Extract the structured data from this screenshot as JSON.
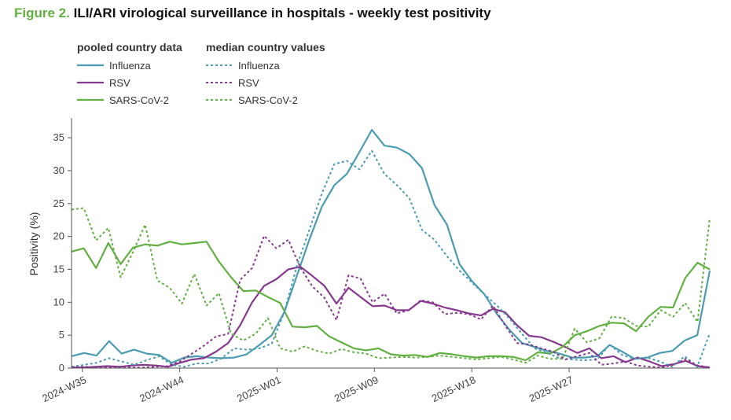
{
  "figure": {
    "label": "Figure 2.",
    "title": "ILI/ARI virological surveillance in hospitals - weekly test positivity"
  },
  "chart_data": {
    "type": "line",
    "title": "ILI/ARI virological surveillance in hospitals - weekly test positivity",
    "xlabel": "",
    "ylabel": "Positivity (%)",
    "ylim": [
      0,
      38
    ],
    "yticks": [
      0,
      5,
      10,
      15,
      20,
      25,
      30,
      35
    ],
    "week_count": 60,
    "xtick_labels": [
      "2024-W35",
      "2024-W44",
      "2025-W01",
      "2025-W09",
      "2025-W18",
      "2025-W27"
    ],
    "xtick_positions": [
      1,
      10,
      19,
      28,
      37,
      46
    ],
    "legend": {
      "pooled_heading": "pooled country data",
      "median_heading": "median country values"
    },
    "colors": {
      "Influenza": "#4b9cb0",
      "RSV": "#87398f",
      "SARS-CoV-2": "#62b041"
    },
    "series": [
      {
        "name": "Influenza",
        "style": "solid",
        "values": [
          1.8,
          2.3,
          1.9,
          4.1,
          2.2,
          2.8,
          2.2,
          2.0,
          0.8,
          1.6,
          1.8,
          1.6,
          1.5,
          1.6,
          2.1,
          3.5,
          5.0,
          8.5,
          14.0,
          19.5,
          24.5,
          27.8,
          29.5,
          32.8,
          36.2,
          33.8,
          33.5,
          32.5,
          30.4,
          24.8,
          21.8,
          15.8,
          13.2,
          11.2,
          8.2,
          5.8,
          3.8,
          3.2,
          2.6,
          2.2,
          1.6,
          1.6,
          1.8,
          3.5,
          2.5,
          1.4,
          1.6,
          2.3,
          2.6,
          4.2,
          5.0,
          14.8
        ]
      },
      {
        "name": "RSV",
        "style": "solid",
        "values": [
          0.1,
          0.1,
          0.2,
          0.3,
          0.2,
          0.4,
          0.5,
          0.4,
          0.2,
          0.8,
          1.3,
          1.5,
          2.5,
          3.8,
          6.5,
          10.0,
          12.5,
          13.5,
          15.0,
          15.4,
          14.0,
          12.5,
          9.8,
          12.2,
          10.8,
          9.4,
          9.5,
          8.8,
          8.8,
          10.2,
          9.8,
          9.2,
          8.8,
          8.3,
          8.0,
          9.0,
          8.5,
          6.5,
          4.9,
          4.7,
          4.0,
          3.2,
          2.3,
          3.0,
          1.5,
          1.8,
          0.9,
          1.6,
          1.0,
          0.3,
          0.6,
          1.1,
          0.3,
          0.1
        ]
      },
      {
        "name": "SARS-CoV-2",
        "style": "solid",
        "values": [
          17.7,
          18.2,
          15.2,
          19.0,
          15.8,
          18.3,
          18.8,
          18.6,
          19.2,
          18.8,
          19.0,
          19.2,
          16.2,
          13.8,
          11.7,
          11.8,
          10.8,
          9.9,
          6.3,
          6.2,
          6.4,
          4.8,
          3.9,
          3.0,
          2.7,
          3.0,
          2.1,
          1.9,
          2.0,
          1.7,
          2.3,
          2.1,
          1.8,
          1.6,
          1.8,
          1.8,
          1.7,
          1.2,
          2.4,
          2.2,
          3.2,
          5.0,
          5.6,
          6.4,
          6.9,
          6.8,
          5.6,
          7.8,
          9.3,
          9.2,
          13.7,
          16.0,
          15.0
        ]
      },
      {
        "name": "Influenza",
        "style": "dashed",
        "values": [
          0.2,
          0.5,
          0.8,
          1.5,
          1.0,
          0.5,
          1.2,
          1.8,
          0.5,
          0.2,
          0.7,
          0.7,
          1.5,
          3.0,
          2.8,
          3.0,
          3.7,
          8.5,
          15.5,
          21.0,
          26.5,
          31.0,
          31.5,
          30.2,
          33.0,
          29.5,
          27.8,
          25.8,
          21.0,
          19.5,
          17.0,
          14.8,
          13.0,
          11.2,
          9.5,
          7.5,
          5.2,
          3.0,
          2.3,
          1.5,
          1.3,
          1.2,
          1.3,
          3.6,
          2.0,
          1.4,
          1.6,
          1.0,
          0.2,
          1.8,
          0.2,
          5.3
        ]
      },
      {
        "name": "RSV",
        "style": "dashed",
        "values": [
          0.1,
          0.2,
          0.1,
          0.1,
          0.2,
          0.1,
          0.1,
          0.2,
          0.3,
          1.0,
          2.2,
          3.4,
          4.8,
          5.2,
          13.4,
          15.2,
          20.1,
          18.2,
          19.5,
          15.3,
          12.4,
          10.7,
          7.3,
          14.1,
          13.6,
          10.0,
          11.3,
          8.3,
          8.8,
          10.3,
          10.0,
          8.2,
          8.4,
          8.2,
          7.4,
          9.5,
          6.5,
          3.8,
          3.6,
          3.0,
          2.5,
          1.3,
          1.8,
          2.3,
          0.5,
          0.7,
          1.0,
          0.4,
          0.2,
          0.1,
          0.5,
          1.4,
          0.4,
          0.1
        ]
      },
      {
        "name": "SARS-CoV-2",
        "style": "dashed",
        "values": [
          24.1,
          24.3,
          19.4,
          21.3,
          13.8,
          17.6,
          21.8,
          13.3,
          12.2,
          9.8,
          14.3,
          9.5,
          11.4,
          5.2,
          4.2,
          5.2,
          7.6,
          3.0,
          2.5,
          3.3,
          2.6,
          2.2,
          2.9,
          2.4,
          2.2,
          1.5,
          1.6,
          1.7,
          1.6,
          1.7,
          1.9,
          1.7,
          1.5,
          1.3,
          1.5,
          1.7,
          1.3,
          0.8,
          1.9,
          1.4,
          1.4,
          6.0,
          3.9,
          4.5,
          7.8,
          7.6,
          6.4,
          6.3,
          8.8,
          7.8,
          9.9,
          7.0,
          22.8
        ]
      }
    ]
  }
}
